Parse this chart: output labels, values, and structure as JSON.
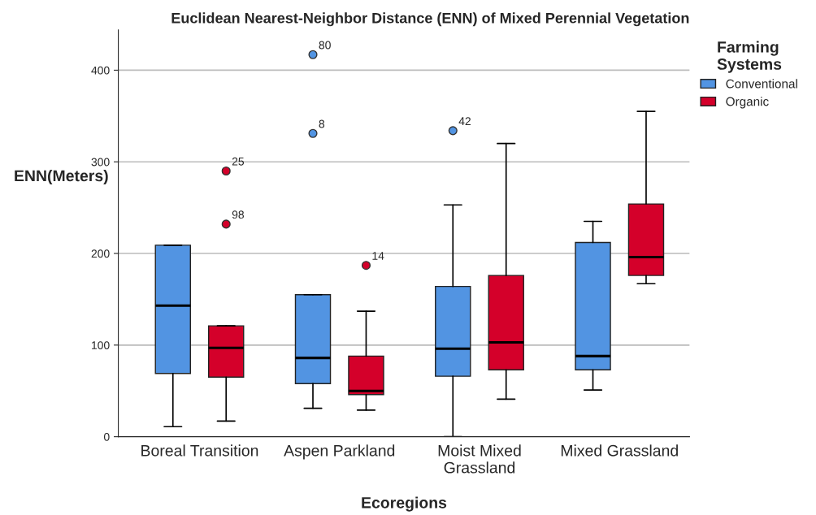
{
  "chart_data": {
    "type": "box",
    "title": "Euclidean Nearest-Neighbor Distance (ENN) of Mixed Perennial Vegetation",
    "xlabel": "Ecoregions",
    "ylabel": "ENN(Meters)",
    "legend_title": "Farming\nSystems",
    "categories": [
      "Boreal Transition",
      "Aspen Parkland",
      "Moist Mixed\nGrassland",
      "Mixed Grassland"
    ],
    "ylim": [
      0,
      444
    ],
    "yticks": [
      0,
      100,
      200,
      300,
      400
    ],
    "grid": "y",
    "legend": "top right",
    "series": [
      {
        "name": "Conventional",
        "color": "#5294e2",
        "boxes": [
          {
            "low": 11,
            "q1": 69,
            "median": 143,
            "q3": 209,
            "high": 209
          },
          {
            "low": 31,
            "q1": 58,
            "median": 86,
            "q3": 155,
            "high": 155,
            "outliers": [
              331,
              417
            ]
          },
          {
            "low": 0,
            "q1": 66,
            "median": 96,
            "q3": 164,
            "high": 253,
            "outliers": [
              334
            ]
          },
          {
            "low": 51,
            "q1": 73,
            "median": 88,
            "q3": 212,
            "high": 235
          }
        ]
      },
      {
        "name": "Organic",
        "color": "#d4002a",
        "boxes": [
          {
            "low": 17,
            "q1": 65,
            "median": 97,
            "q3": 121,
            "high": 121,
            "outliers": [
              232,
              290
            ]
          },
          {
            "low": 29,
            "q1": 46,
            "median": 50,
            "q3": 88,
            "high": 137,
            "outliers": [
              187
            ]
          },
          {
            "low": 41,
            "q1": 73,
            "median": 103,
            "q3": 176,
            "high": 320
          },
          {
            "low": 167,
            "q1": 176,
            "median": 196,
            "q3": 254,
            "high": 355
          }
        ]
      }
    ],
    "annotations": [
      "98",
      "25",
      "8",
      "80",
      "14",
      "42"
    ]
  }
}
